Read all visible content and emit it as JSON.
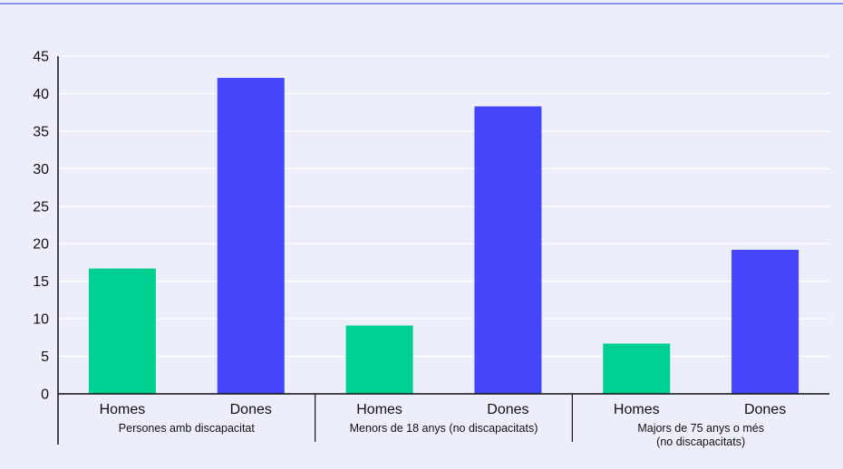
{
  "chart_data": {
    "type": "bar",
    "title": "",
    "xlabel": "",
    "ylabel": "",
    "ylim": [
      0,
      45
    ],
    "yticks": [
      0,
      5,
      10,
      15,
      20,
      25,
      30,
      35,
      40,
      45
    ],
    "grid": true,
    "groups": [
      {
        "label_lines": [
          "Persones amb discapacitat"
        ],
        "bars": [
          {
            "category": "Homes",
            "value": 16.7
          },
          {
            "category": "Dones",
            "value": 42.1
          }
        ]
      },
      {
        "label_lines": [
          "Menors de 18 anys (no discapacitats)"
        ],
        "bars": [
          {
            "category": "Homes",
            "value": 9.1
          },
          {
            "category": "Dones",
            "value": 38.3
          }
        ]
      },
      {
        "label_lines": [
          "Majors de 75 anys o més",
          "(no discapacitats)"
        ],
        "bars": [
          {
            "category": "Homes",
            "value": 6.7
          },
          {
            "category": "Dones",
            "value": 19.2
          }
        ]
      }
    ],
    "colors": {
      "Homes": "#00d091",
      "Dones": "#4545fb"
    }
  }
}
